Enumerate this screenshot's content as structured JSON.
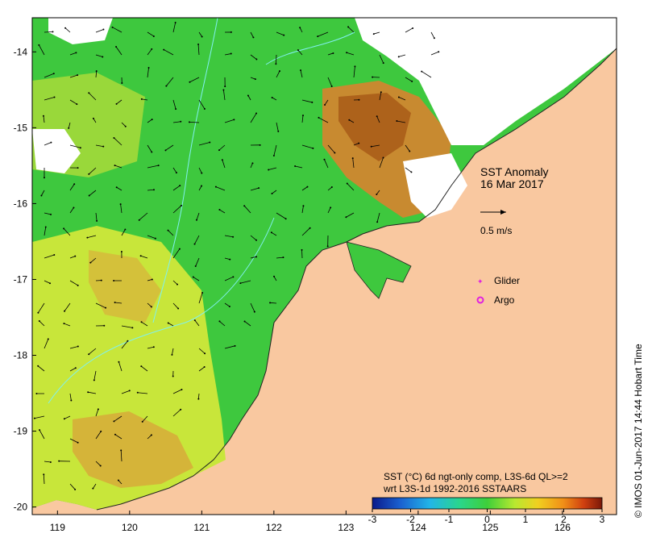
{
  "map": {
    "title": "SST Anomaly",
    "date": "16 Mar 2017",
    "vector_scale_label": "0.5 m/s",
    "legend": {
      "glider_label": "Glider",
      "argo_label": "Argo",
      "glider_color": "#e020e0",
      "argo_color": "#e020e0"
    },
    "colorbar": {
      "caption_line1": "SST (°C) 6d ngt-only comp, L3S-6d QL>=2",
      "caption_line2": "wrt L3S-1d 1992-2016 SSTAARS",
      "ticks": [
        "-3",
        "-2",
        "-1",
        "0",
        "1",
        "2",
        "3"
      ],
      "range": [
        -3,
        3
      ],
      "colors": [
        "#0a1a8a",
        "#1a5fd0",
        "#22b5e8",
        "#2ad68c",
        "#3ecf3a",
        "#b8e830",
        "#f0d020",
        "#f09018",
        "#d04010",
        "#7a1808"
      ]
    },
    "credit": "© IMOS 01-Jun-2017 14:44 Hobart Time",
    "x_axis": {
      "ticks": [
        "119",
        "120",
        "121",
        "122",
        "123",
        "124",
        "125",
        "126"
      ],
      "range": [
        118.65,
        126.75
      ]
    },
    "y_axis": {
      "ticks": [
        "-14",
        "-15",
        "-16",
        "-17",
        "-18",
        "-19",
        "-20"
      ],
      "range": [
        -20.1,
        -13.55
      ]
    },
    "colors": {
      "land": "#f9c8a0",
      "cloud": "#ffffff",
      "ocean_green": "#3ec83e",
      "ocean_yellow": "#c8e63a",
      "ocean_orange": "#d8963a",
      "ocean_darkorange": "#b86020",
      "bathymetry": "#80f0f0",
      "vector": "#000000"
    }
  }
}
